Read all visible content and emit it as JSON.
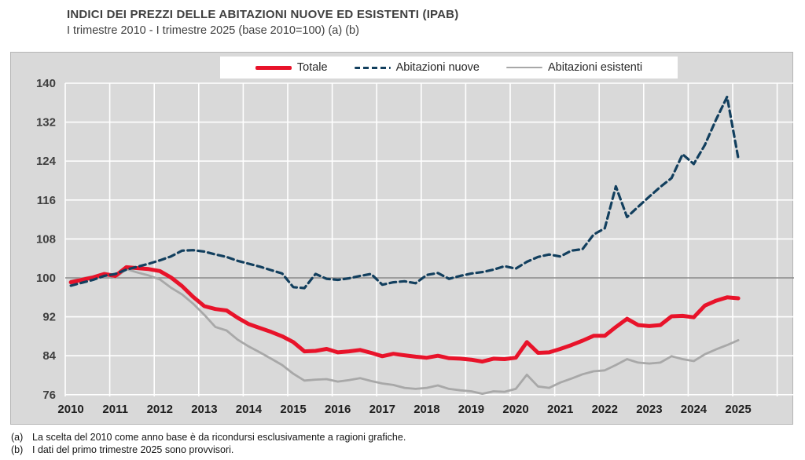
{
  "header": {
    "title": "INDICI DEI PREZZI DELLE ABITAZIONI NUOVE ED ESISTENTI (IPAB)",
    "subtitle": "I trimestre 2010 - I trimestre 2025 (base 2010=100) (a) (b)"
  },
  "footnotes": [
    {
      "tag": "(a)",
      "text": "La scelta del 2010 come anno base è da ricondursi esclusivamente a ragioni grafiche."
    },
    {
      "tag": "(b)",
      "text": "I dati del primo trimestre 2025 sono provvisori."
    }
  ],
  "chart_data": {
    "type": "line",
    "title": "INDICI DEI PREZZI DELLE ABITAZIONI NUOVE ED ESISTENTI (IPAB)",
    "subtitle": "I trimestre 2010 - I trimestre 2025 (base 2010=100) (a) (b)",
    "frequency": "quarterly",
    "x_start": "2010-Q1",
    "x_end": "2025-Q1",
    "year_labels": [
      "2010",
      "2011",
      "2012",
      "2013",
      "2014",
      "2015",
      "2016",
      "2017",
      "2018",
      "2019",
      "2020",
      "2021",
      "2022",
      "2023",
      "2024",
      "2025"
    ],
    "yticks": [
      76,
      84,
      92,
      100,
      108,
      116,
      124,
      132,
      140
    ],
    "ylim": [
      76,
      140
    ],
    "baseline": 100,
    "legend_position": "top",
    "plot_background": "#d9d9d9",
    "grid_color": "#ffffff",
    "baseline_color": "#8a8a8a",
    "tick_label_color": "#3f3f3f",
    "series": [
      {
        "name": "Totale",
        "color": "#e8132a",
        "style": "solid",
        "stroke_width": 5,
        "values": [
          99.1,
          99.6,
          100.1,
          100.8,
          100.4,
          102.2,
          102.0,
          101.8,
          101.4,
          100.1,
          98.3,
          96.1,
          94.2,
          93.6,
          93.3,
          91.8,
          90.5,
          89.7,
          88.9,
          88.0,
          86.8,
          84.9,
          85.0,
          85.4,
          84.7,
          84.9,
          85.2,
          84.6,
          83.9,
          84.4,
          84.1,
          83.8,
          83.6,
          84.0,
          83.5,
          83.4,
          83.2,
          82.8,
          83.4,
          83.3,
          83.6,
          86.8,
          84.6,
          84.7,
          85.4,
          86.2,
          87.1,
          88.1,
          88.1,
          89.9,
          91.6,
          90.3,
          90.1,
          90.3,
          92.1,
          92.2,
          91.9,
          94.3,
          95.3,
          96.0,
          95.8
        ]
      },
      {
        "name": "Abitazioni nuove",
        "color": "#123f5e",
        "style": "dashed",
        "stroke_width": 3.2,
        "values": [
          98.4,
          99.0,
          99.6,
          100.4,
          100.8,
          101.7,
          102.3,
          102.9,
          103.6,
          104.4,
          105.6,
          105.7,
          105.4,
          104.8,
          104.3,
          103.5,
          102.9,
          102.3,
          101.6,
          100.9,
          98.1,
          97.9,
          100.8,
          99.8,
          99.6,
          99.9,
          100.4,
          100.8,
          98.6,
          99.1,
          99.3,
          98.9,
          100.6,
          101.0,
          99.8,
          100.4,
          100.9,
          101.2,
          101.7,
          102.4,
          101.9,
          103.3,
          104.3,
          104.8,
          104.4,
          105.6,
          105.9,
          108.9,
          110.2,
          118.8,
          112.5,
          114.6,
          116.7,
          118.7,
          120.5,
          125.4,
          123.4,
          127.3,
          132.5,
          137.2,
          124.6
        ]
      },
      {
        "name": "Abitazioni esistenti",
        "color": "#a8a8a8",
        "style": "solid",
        "stroke_width": 2.8,
        "values": [
          99.4,
          99.9,
          100.3,
          100.9,
          100.0,
          101.8,
          101.1,
          100.5,
          99.7,
          98.0,
          96.6,
          94.7,
          92.4,
          89.9,
          89.2,
          87.3,
          85.9,
          84.7,
          83.4,
          82.1,
          80.3,
          78.9,
          79.1,
          79.2,
          78.7,
          79.0,
          79.4,
          78.8,
          78.3,
          78.0,
          77.4,
          77.2,
          77.4,
          77.9,
          77.2,
          76.9,
          76.7,
          76.2,
          76.7,
          76.6,
          77.2,
          80.1,
          77.7,
          77.4,
          78.5,
          79.3,
          80.2,
          80.8,
          81.0,
          82.1,
          83.3,
          82.6,
          82.4,
          82.6,
          83.9,
          83.3,
          82.9,
          84.3,
          85.3,
          86.2,
          87.2
        ]
      }
    ]
  }
}
